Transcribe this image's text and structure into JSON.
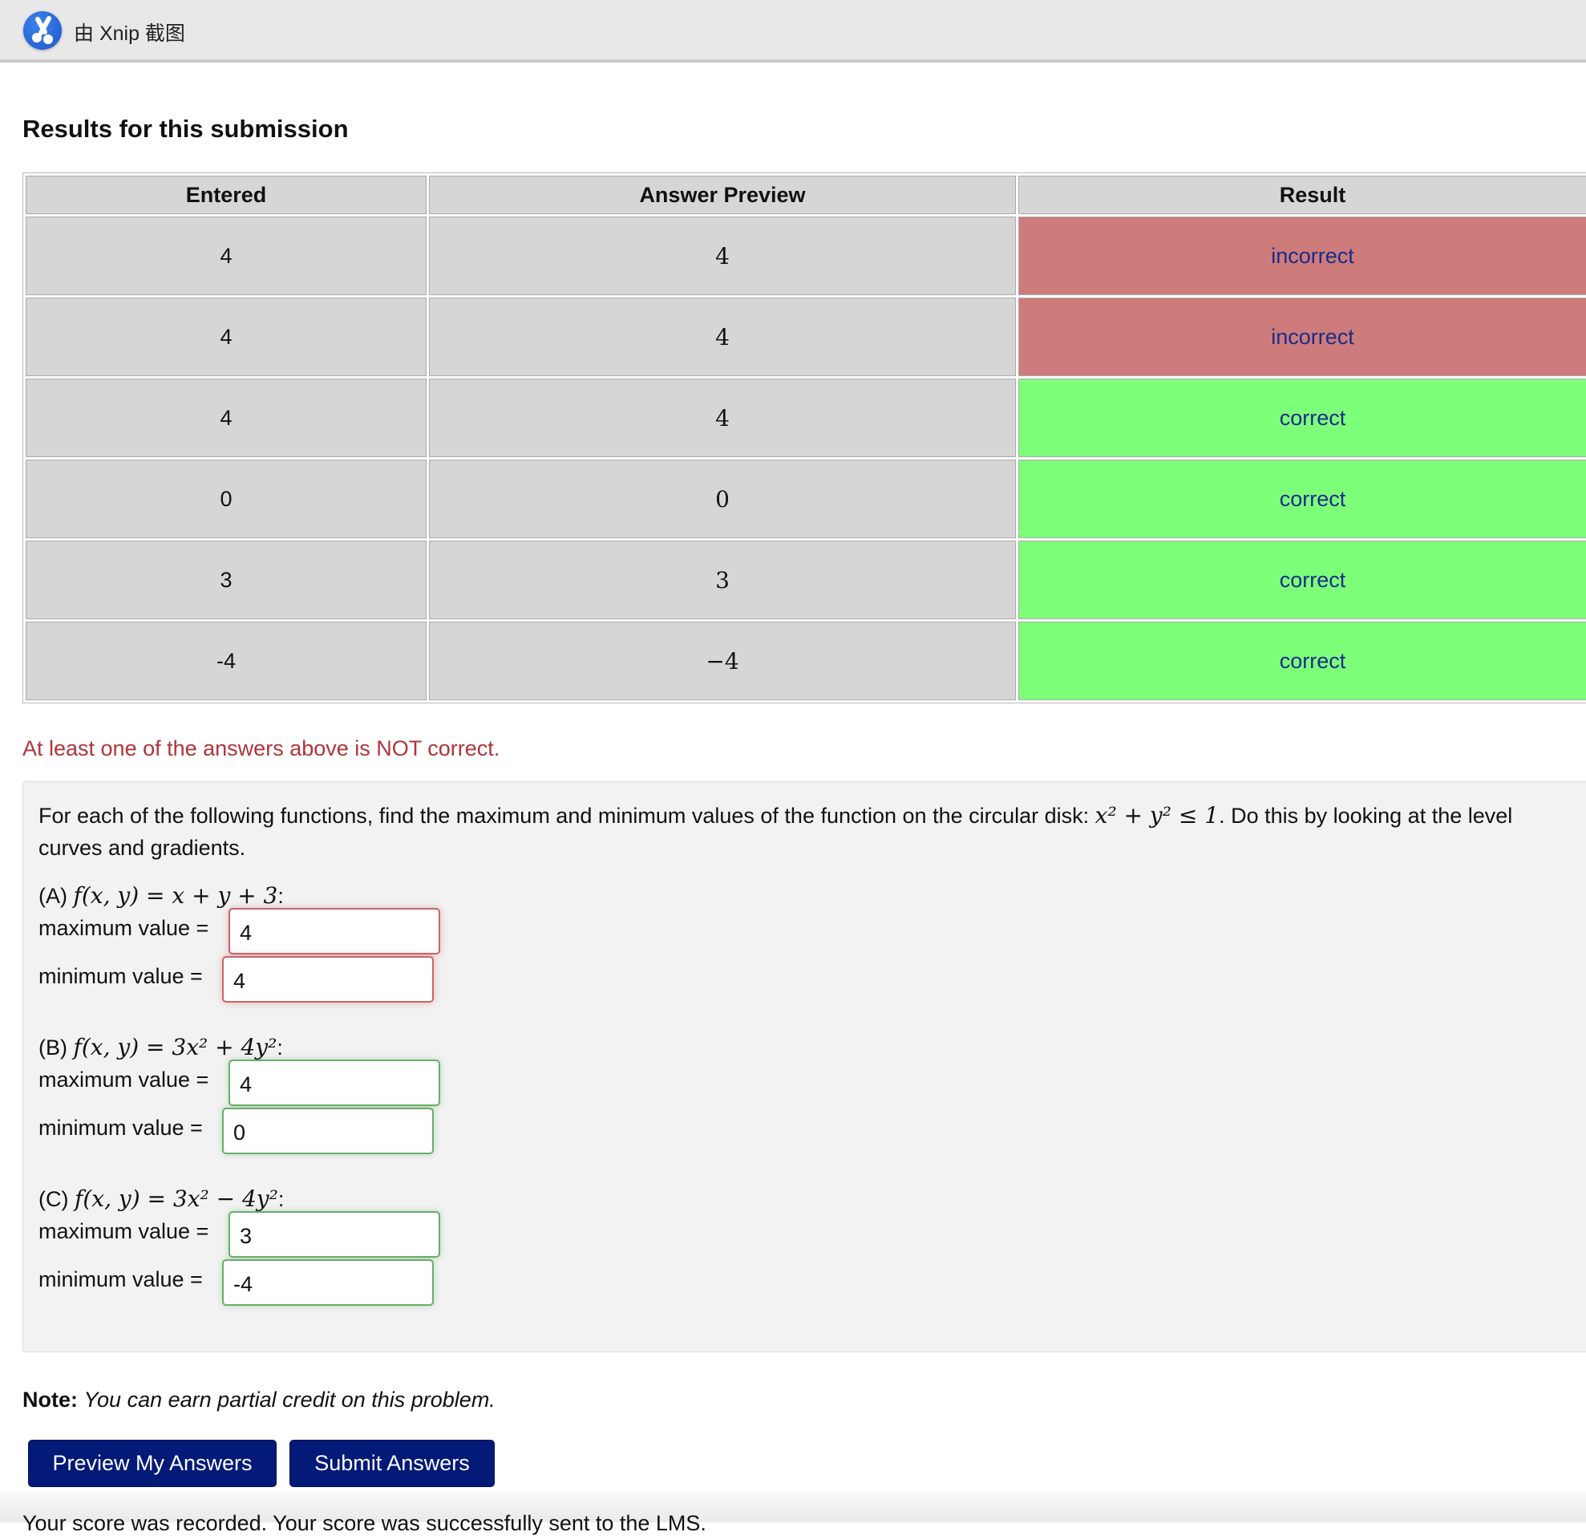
{
  "window": {
    "title": "由 Xnip 截图"
  },
  "heading": "Results for this submission",
  "table": {
    "headers": [
      "Entered",
      "Answer Preview",
      "Result"
    ],
    "rows": [
      {
        "entered": "4",
        "preview": "4",
        "result": "incorrect"
      },
      {
        "entered": "4",
        "preview": "4",
        "result": "incorrect"
      },
      {
        "entered": "4",
        "preview": "4",
        "result": "correct"
      },
      {
        "entered": "0",
        "preview": "0",
        "result": "correct"
      },
      {
        "entered": "3",
        "preview": "3",
        "result": "correct"
      },
      {
        "entered": "-4",
        "preview": "−4",
        "result": "correct"
      }
    ]
  },
  "colors": {
    "incorrect": "#cd7b7b",
    "correct": "#7eff7a",
    "error_text": "#b0343a",
    "button": "#041a78"
  },
  "error_message": "At least one of the answers above is NOT correct.",
  "problem": {
    "intro": "For each of the following functions, find the maximum and minimum values of the function on the circular disk:",
    "disk": "x² + y² ≤ 1",
    "intro_end": ". Do this by looking at the level curves and gradients.",
    "parts": [
      {
        "label": "(A)",
        "formula": "f(x, y) = x + y + 3",
        "max": "4",
        "min": "4",
        "status": "incorrect"
      },
      {
        "label": "(B)",
        "formula": "f(x, y) = 3x² + 4y²",
        "max": "4",
        "min": "0",
        "status": "correct"
      },
      {
        "label": "(C)",
        "formula": "f(x, y) = 3x² − 4y²",
        "max": "3",
        "min": "-4",
        "status": "correct"
      }
    ],
    "max_label": "maximum value =",
    "min_label": "minimum value ="
  },
  "note": {
    "bold": "Note:",
    "text": "You can earn partial credit on this problem."
  },
  "buttons": {
    "preview": "Preview My Answers",
    "submit": "Submit Answers"
  },
  "footer": "Your score was recorded. Your score was successfully sent to the LMS."
}
